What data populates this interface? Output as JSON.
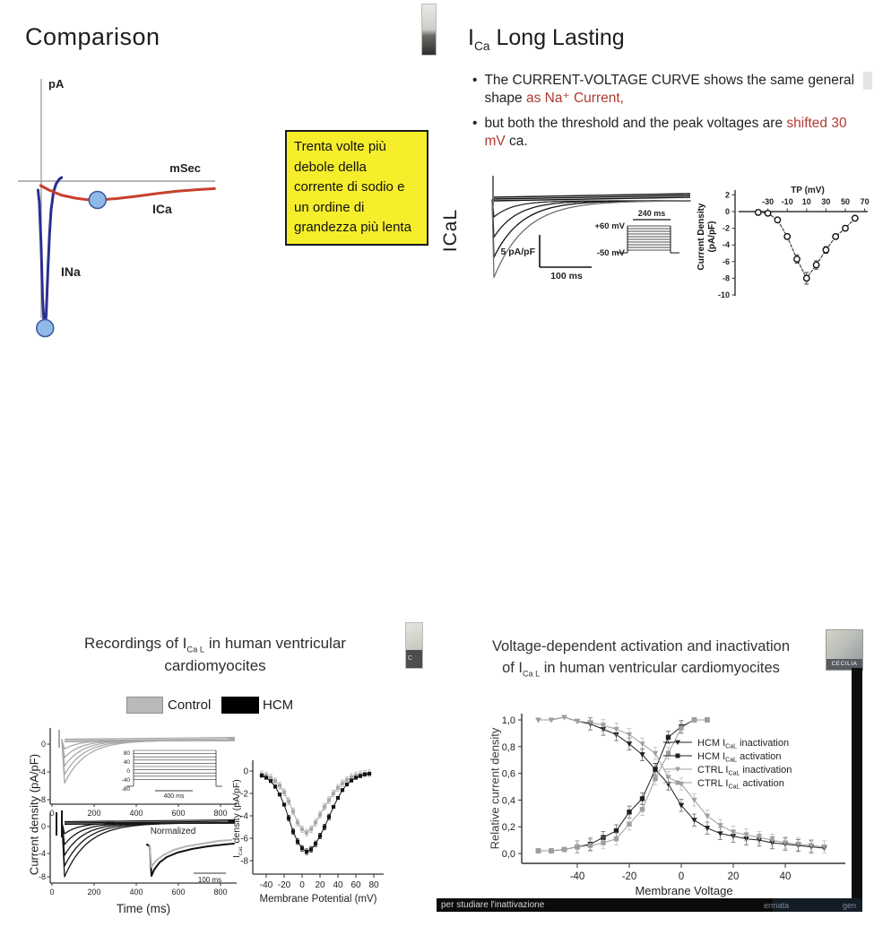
{
  "slides": {
    "comparison": {
      "title": "Comparison"
    },
    "ica_long": {
      "title": {
        "pre": "I",
        "sub": "Ca",
        "post": " Long Lasting"
      },
      "bullet_char": "•",
      "bullets": [
        {
          "pre": "The CURRENT-VOLTAGE CURVE shows the same general shape ",
          "red": "as Na⁺ Current,",
          "post": ""
        },
        {
          "pre": "but both the threshold and the peak voltages are ",
          "red": "shifted 30 mV",
          "post": " ca."
        }
      ]
    },
    "note": {
      "text": "Trenta volte più debole della corrente di sodio e un ordine di grandezza più lenta"
    },
    "recordings": {
      "title": {
        "pre": "Recordings of I",
        "sub": "Ca L",
        "post": " in human ventricular",
        "line2": "cardiomyocites"
      },
      "legend": [
        {
          "label": "Control",
          "color": "#b9b9b9"
        },
        {
          "label": "HCM",
          "color": "#000000"
        }
      ],
      "ylabel": "Current density (pA/pF)"
    },
    "activation": {
      "title": {
        "line1": "Voltage-dependent activation and inactivation",
        "pre2": "of I",
        "sub2": "Ca L",
        "post2": " in human ventricular cardiomyocites"
      }
    }
  },
  "overlays": {
    "webcam_br_label": "CECILIA",
    "webcam_bl_label": "C",
    "caption": "per studiare l'inattivazione",
    "caption_right_1": "ermata",
    "caption_right_2": "gen"
  },
  "colors": {
    "accent_red": "#b03a31",
    "ina_blue": "#2c2f8f",
    "ica_red": "#c8402e",
    "marker_blue": "#8fb9e6",
    "control_gray": "#a9a9a9",
    "hcm_black": "#141414",
    "note_yellow": "#f6ee2b"
  },
  "chart_data": [
    {
      "id": "comparison-sketch",
      "type": "line",
      "xlabel": "mSec",
      "ylabel": "pA",
      "marker_fill": "#8fb9e6",
      "marker_stroke": "#3a57a0",
      "series": [
        {
          "name": "INa",
          "color": "#2c2f8f",
          "points": [
            [
              0.55,
              -0.5
            ],
            [
              0.62,
              -1.2
            ],
            [
              0.7,
              -3.5
            ],
            [
              0.78,
              -6.5
            ],
            [
              0.85,
              -7.9
            ],
            [
              0.9,
              -8.2
            ],
            [
              0.96,
              -7.4
            ],
            [
              1.04,
              -5.0
            ],
            [
              1.12,
              -3.0
            ],
            [
              1.2,
              -1.6
            ],
            [
              1.32,
              -0.6
            ],
            [
              1.45,
              -0.15
            ],
            [
              1.6,
              0.1
            ],
            [
              1.72,
              0.2
            ]
          ],
          "marker": [
            0.9,
            -8.2
          ]
        },
        {
          "name": "ICa",
          "color": "#c8402e",
          "points": [
            [
              0.68,
              -0.25
            ],
            [
              1.1,
              -0.5
            ],
            [
              1.7,
              -0.78
            ],
            [
              2.4,
              -0.95
            ],
            [
              3.0,
              -1.04
            ],
            [
              3.6,
              -1.05
            ],
            [
              4.4,
              -0.98
            ],
            [
              5.4,
              -0.85
            ],
            [
              6.4,
              -0.7
            ],
            [
              7.4,
              -0.57
            ],
            [
              8.4,
              -0.48
            ],
            [
              9.3,
              -0.42
            ]
          ],
          "marker": [
            3.5,
            -1.05
          ]
        }
      ]
    },
    {
      "id": "ical-traces",
      "type": "line",
      "side_label": "ICaL",
      "peaks_pApF": [
        -2,
        -4.5,
        -7,
        -9.5
      ],
      "scale_v": "5 pA/pF",
      "scale_h": "100 ms",
      "protocol": {
        "top": "+60 mV",
        "bottom": "-50 mV",
        "duration": "240 ms",
        "steps": 10
      }
    },
    {
      "id": "iv-tp",
      "type": "scatter",
      "xlabel": "TP (mV)",
      "ylabel_line1": "Current Density",
      "ylabel_line2": "(pA/pF)",
      "x": [
        -40,
        -30,
        -20,
        -10,
        0,
        10,
        20,
        30,
        40,
        50,
        60
      ],
      "values": [
        -0.1,
        -0.2,
        -1.0,
        -3.0,
        -5.7,
        -8.0,
        -6.4,
        -4.6,
        -3.0,
        -2.0,
        -0.8
      ],
      "errors": [
        0.1,
        0.1,
        0.2,
        0.3,
        0.5,
        0.7,
        0.5,
        0.4,
        0.3,
        0.25,
        0.2
      ],
      "xticks": [
        -30,
        -10,
        10,
        30,
        50,
        70
      ],
      "yticks": [
        2,
        0,
        -2,
        -4,
        -6,
        -8,
        -10
      ],
      "ylim": [
        2,
        -10
      ]
    },
    {
      "id": "traces-control",
      "type": "line",
      "color": "#a9a9a9",
      "peaks_pApF": [
        -1.2,
        -2.4,
        -3.6,
        -4.8,
        -6.0
      ],
      "xticks": [
        0,
        200,
        400,
        600,
        800
      ],
      "yticks": [
        0,
        -4,
        -8
      ],
      "inset": {
        "labels": [
          80,
          40,
          0,
          -40,
          -80
        ],
        "scale": "400 ms"
      }
    },
    {
      "id": "traces-hcm",
      "type": "line",
      "color": "#161616",
      "xlabel": "Time (ms)",
      "peaks_pApF": [
        -1.5,
        -3.0,
        -4.5,
        -6.0,
        -7.5
      ],
      "xticks": [
        0,
        200,
        400,
        600,
        800
      ],
      "yticks": [
        0,
        -4,
        -8
      ],
      "inset_normalized": {
        "label": "Normalized",
        "scale": "100 ms"
      }
    },
    {
      "id": "iv-membrane",
      "type": "scatter",
      "xlabel": "Membrane Potential (mV)",
      "ylabel_parts": {
        "pre": "I",
        "sub": "CaL",
        "post": " density (pA/pF)"
      },
      "x": [
        -45,
        -40,
        -35,
        -30,
        -25,
        -20,
        -15,
        -10,
        -5,
        0,
        5,
        10,
        15,
        20,
        25,
        30,
        35,
        40,
        45,
        50,
        55,
        60,
        65,
        70,
        75
      ],
      "series": [
        {
          "name": "Control",
          "color": "#a9a9a9",
          "err": 0.3,
          "values": [
            -0.3,
            -0.4,
            -0.6,
            -0.9,
            -1.3,
            -1.9,
            -2.7,
            -3.6,
            -4.6,
            -5.2,
            -5.5,
            -5.2,
            -4.6,
            -3.9,
            -3.2,
            -2.6,
            -2.0,
            -1.5,
            -1.1,
            -0.8,
            -0.55,
            -0.4,
            -0.3,
            -0.25,
            -0.2
          ]
        },
        {
          "name": "HCM",
          "color": "#141414",
          "err": 0.25,
          "values": [
            -0.4,
            -0.6,
            -0.9,
            -1.4,
            -2.1,
            -3.0,
            -4.2,
            -5.4,
            -6.3,
            -6.9,
            -7.2,
            -7.0,
            -6.5,
            -5.8,
            -5.0,
            -4.1,
            -3.2,
            -2.4,
            -1.7,
            -1.2,
            -0.85,
            -0.6,
            -0.45,
            -0.3,
            -0.25
          ]
        }
      ],
      "xticks": [
        -40,
        -20,
        0,
        20,
        40,
        60,
        80
      ],
      "yticks": [
        0,
        -2,
        -4,
        -6,
        -8
      ]
    },
    {
      "id": "act-inact",
      "type": "scatter",
      "xlabel": "Membrane Voltage",
      "ylabel": "Relative current density",
      "xticks": [
        -40,
        -20,
        0,
        20,
        40
      ],
      "ytick_labels": [
        "1,0",
        "0,8",
        "0,6",
        "0,4",
        "0,2",
        "0,0"
      ],
      "ytick_values": [
        1.0,
        0.8,
        0.6,
        0.4,
        0.2,
        0.0
      ],
      "series": [
        {
          "legend": {
            "pre": "HCM I",
            "sub": "CaL",
            "post": " inactivation"
          },
          "marker": "triangle",
          "color": "#1f1f1f",
          "x": [
            -55,
            -50,
            -45,
            -40,
            -35,
            -30,
            -25,
            -20,
            -15,
            -10,
            -5,
            0,
            5,
            10,
            15,
            20,
            25,
            30,
            35,
            40,
            45,
            50,
            55
          ],
          "values": [
            1.0,
            1.0,
            1.02,
            0.99,
            0.97,
            0.93,
            0.89,
            0.82,
            0.74,
            0.63,
            0.52,
            0.36,
            0.25,
            0.19,
            0.15,
            0.13,
            0.11,
            0.1,
            0.08,
            0.07,
            0.06,
            0.05,
            0.04
          ]
        },
        {
          "legend": {
            "pre": "HCM I",
            "sub": "CaL",
            "post": " activation"
          },
          "marker": "square",
          "color": "#1f1f1f",
          "x": [
            -55,
            -50,
            -45,
            -40,
            -35,
            -30,
            -25,
            -20,
            -15,
            -10,
            -5,
            0,
            5,
            10
          ],
          "values": [
            0.02,
            0.02,
            0.03,
            0.05,
            0.07,
            0.12,
            0.17,
            0.31,
            0.41,
            0.63,
            0.87,
            0.95,
            1.0,
            1.0
          ]
        },
        {
          "legend": {
            "pre": "CTRL I",
            "sub": "CaL",
            "post": " inactivation"
          },
          "marker": "triangle",
          "color": "#9e9e9e",
          "x": [
            -55,
            -50,
            -45,
            -40,
            -35,
            -30,
            -25,
            -20,
            -15,
            -10,
            -5,
            0,
            5,
            10,
            15,
            20,
            25,
            30,
            35,
            40,
            45,
            50,
            55
          ],
          "values": [
            1.0,
            1.0,
            1.02,
            0.99,
            0.98,
            0.96,
            0.93,
            0.89,
            0.82,
            0.75,
            0.57,
            0.52,
            0.4,
            0.28,
            0.21,
            0.16,
            0.14,
            0.12,
            0.1,
            0.08,
            0.07,
            0.06,
            0.05
          ]
        },
        {
          "legend": {
            "pre": "CTRL I",
            "sub": "CaL",
            "post": " activation"
          },
          "marker": "square",
          "color": "#9e9e9e",
          "x": [
            -55,
            -50,
            -45,
            -40,
            -35,
            -30,
            -25,
            -20,
            -15,
            -10,
            -5,
            0,
            5,
            10
          ],
          "values": [
            0.02,
            0.02,
            0.03,
            0.05,
            0.06,
            0.08,
            0.11,
            0.22,
            0.33,
            0.56,
            0.75,
            0.94,
            1.0,
            1.0
          ]
        }
      ]
    }
  ]
}
